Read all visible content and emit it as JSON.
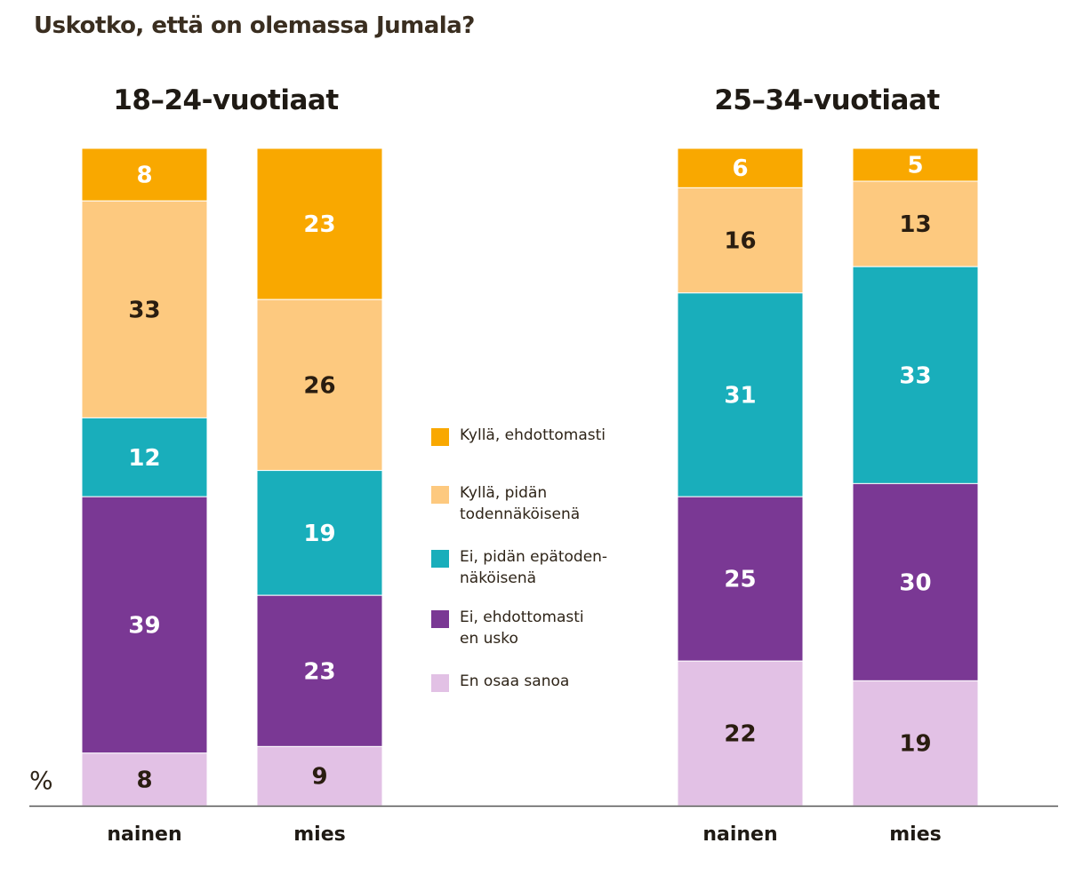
{
  "chart_data": {
    "type": "bar",
    "stacked": true,
    "title": "Uskotko, että on olemassa Jumala?",
    "unit_label": "%",
    "ylim": [
      0,
      100
    ],
    "grid": false,
    "legend_placement": "center",
    "series": [
      {
        "name": "Kyllä, ehdottomasti",
        "color": "#F9A800",
        "text_color": "#ffffff"
      },
      {
        "name": "Kyllä, pidän\ntodennäköisenä",
        "color": "#FDC97F",
        "text_color": "#2a1d10"
      },
      {
        "name": "Ei, pidän epätoden-\nnäköisenä",
        "color": "#19AEBB",
        "text_color": "#ffffff"
      },
      {
        "name": "Ei, ehdottomasti\nen usko",
        "color": "#7A3894",
        "text_color": "#ffffff"
      },
      {
        "name": "En osaa sanoa",
        "color": "#E2C1E5",
        "text_color": "#2a1d10"
      }
    ],
    "groups": [
      {
        "title": "18–24-vuotiaat",
        "bars": [
          {
            "category": "nainen",
            "values": [
              8,
              33,
              12,
              39,
              8
            ]
          },
          {
            "category": "mies",
            "values": [
              23,
              26,
              19,
              23,
              9
            ]
          }
        ]
      },
      {
        "title": "25–34-vuotiaat",
        "bars": [
          {
            "category": "nainen",
            "values": [
              6,
              16,
              31,
              25,
              22
            ]
          },
          {
            "category": "mies",
            "values": [
              5,
              13,
              33,
              30,
              19
            ]
          }
        ]
      }
    ]
  }
}
